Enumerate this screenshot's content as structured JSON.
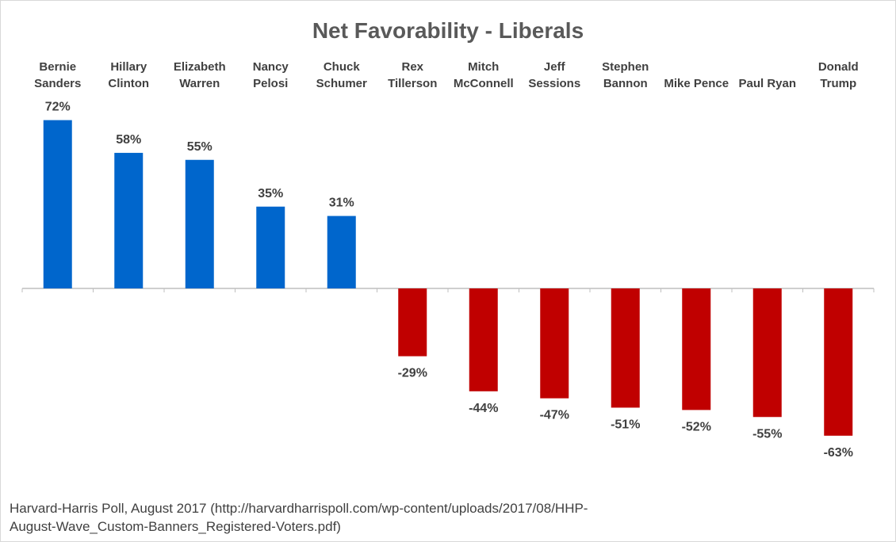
{
  "chart_data": {
    "type": "bar",
    "title": "Net Favorability - Liberals",
    "categories": [
      [
        "Bernie",
        "Sanders"
      ],
      [
        "Hillary",
        "Clinton"
      ],
      [
        "Elizabeth",
        "Warren"
      ],
      [
        "Nancy",
        "Pelosi"
      ],
      [
        "Chuck",
        "Schumer"
      ],
      [
        "Rex",
        "Tillerson"
      ],
      [
        "Mitch",
        "McConnell"
      ],
      [
        "Jeff",
        "Sessions"
      ],
      [
        "Stephen",
        "Bannon"
      ],
      [
        "Mike Pence"
      ],
      [
        "Paul Ryan"
      ],
      [
        "Donald",
        "Trump"
      ]
    ],
    "values": [
      72,
      58,
      55,
      35,
      31,
      -29,
      -44,
      -47,
      -51,
      -52,
      -55,
      -63
    ],
    "value_labels": [
      "72%",
      "58%",
      "55%",
      "35%",
      "31%",
      "-29%",
      "-44%",
      "-47%",
      "-51%",
      "-52%",
      "-55%",
      "-63%"
    ],
    "positive_color": "#0066cc",
    "negative_color": "#c00000",
    "ylim": [
      -70,
      72
    ],
    "grid": false,
    "xlabel": "",
    "ylabel": ""
  },
  "source_note": "Harvard-Harris Poll, August 2017 (http://harvardharrispoll.com/wp-content/uploads/2017/08/HHP-\nAugust-Wave_Custom-Banners_Registered-Voters.pdf)"
}
